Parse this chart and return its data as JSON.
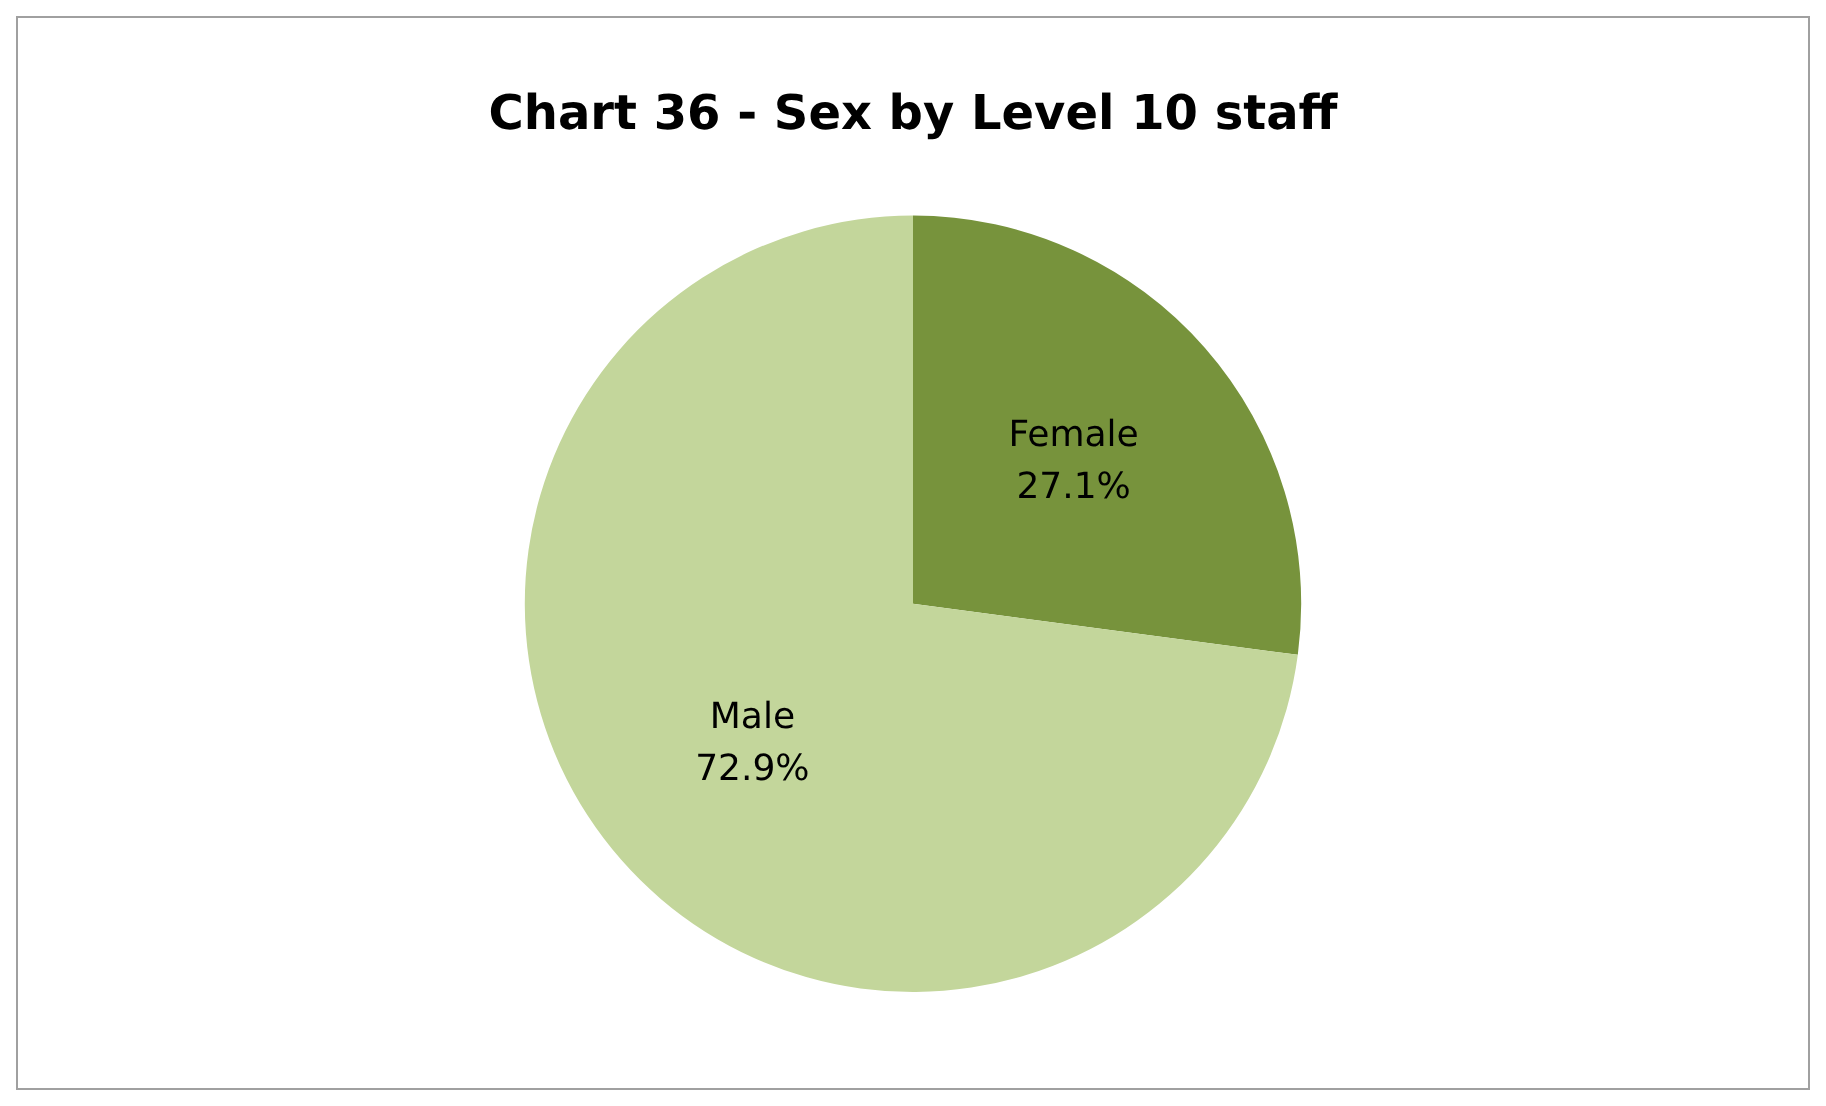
{
  "chart_data": {
    "type": "pie",
    "title": "Chart 36 - Sex by Level 10 staff",
    "categories": [
      "Female",
      "Male"
    ],
    "values": [
      27.1,
      72.9
    ],
    "colors": [
      "#77933c",
      "#c3d69b"
    ],
    "value_labels": [
      "27.1%",
      "72.9%"
    ],
    "legend": false
  }
}
